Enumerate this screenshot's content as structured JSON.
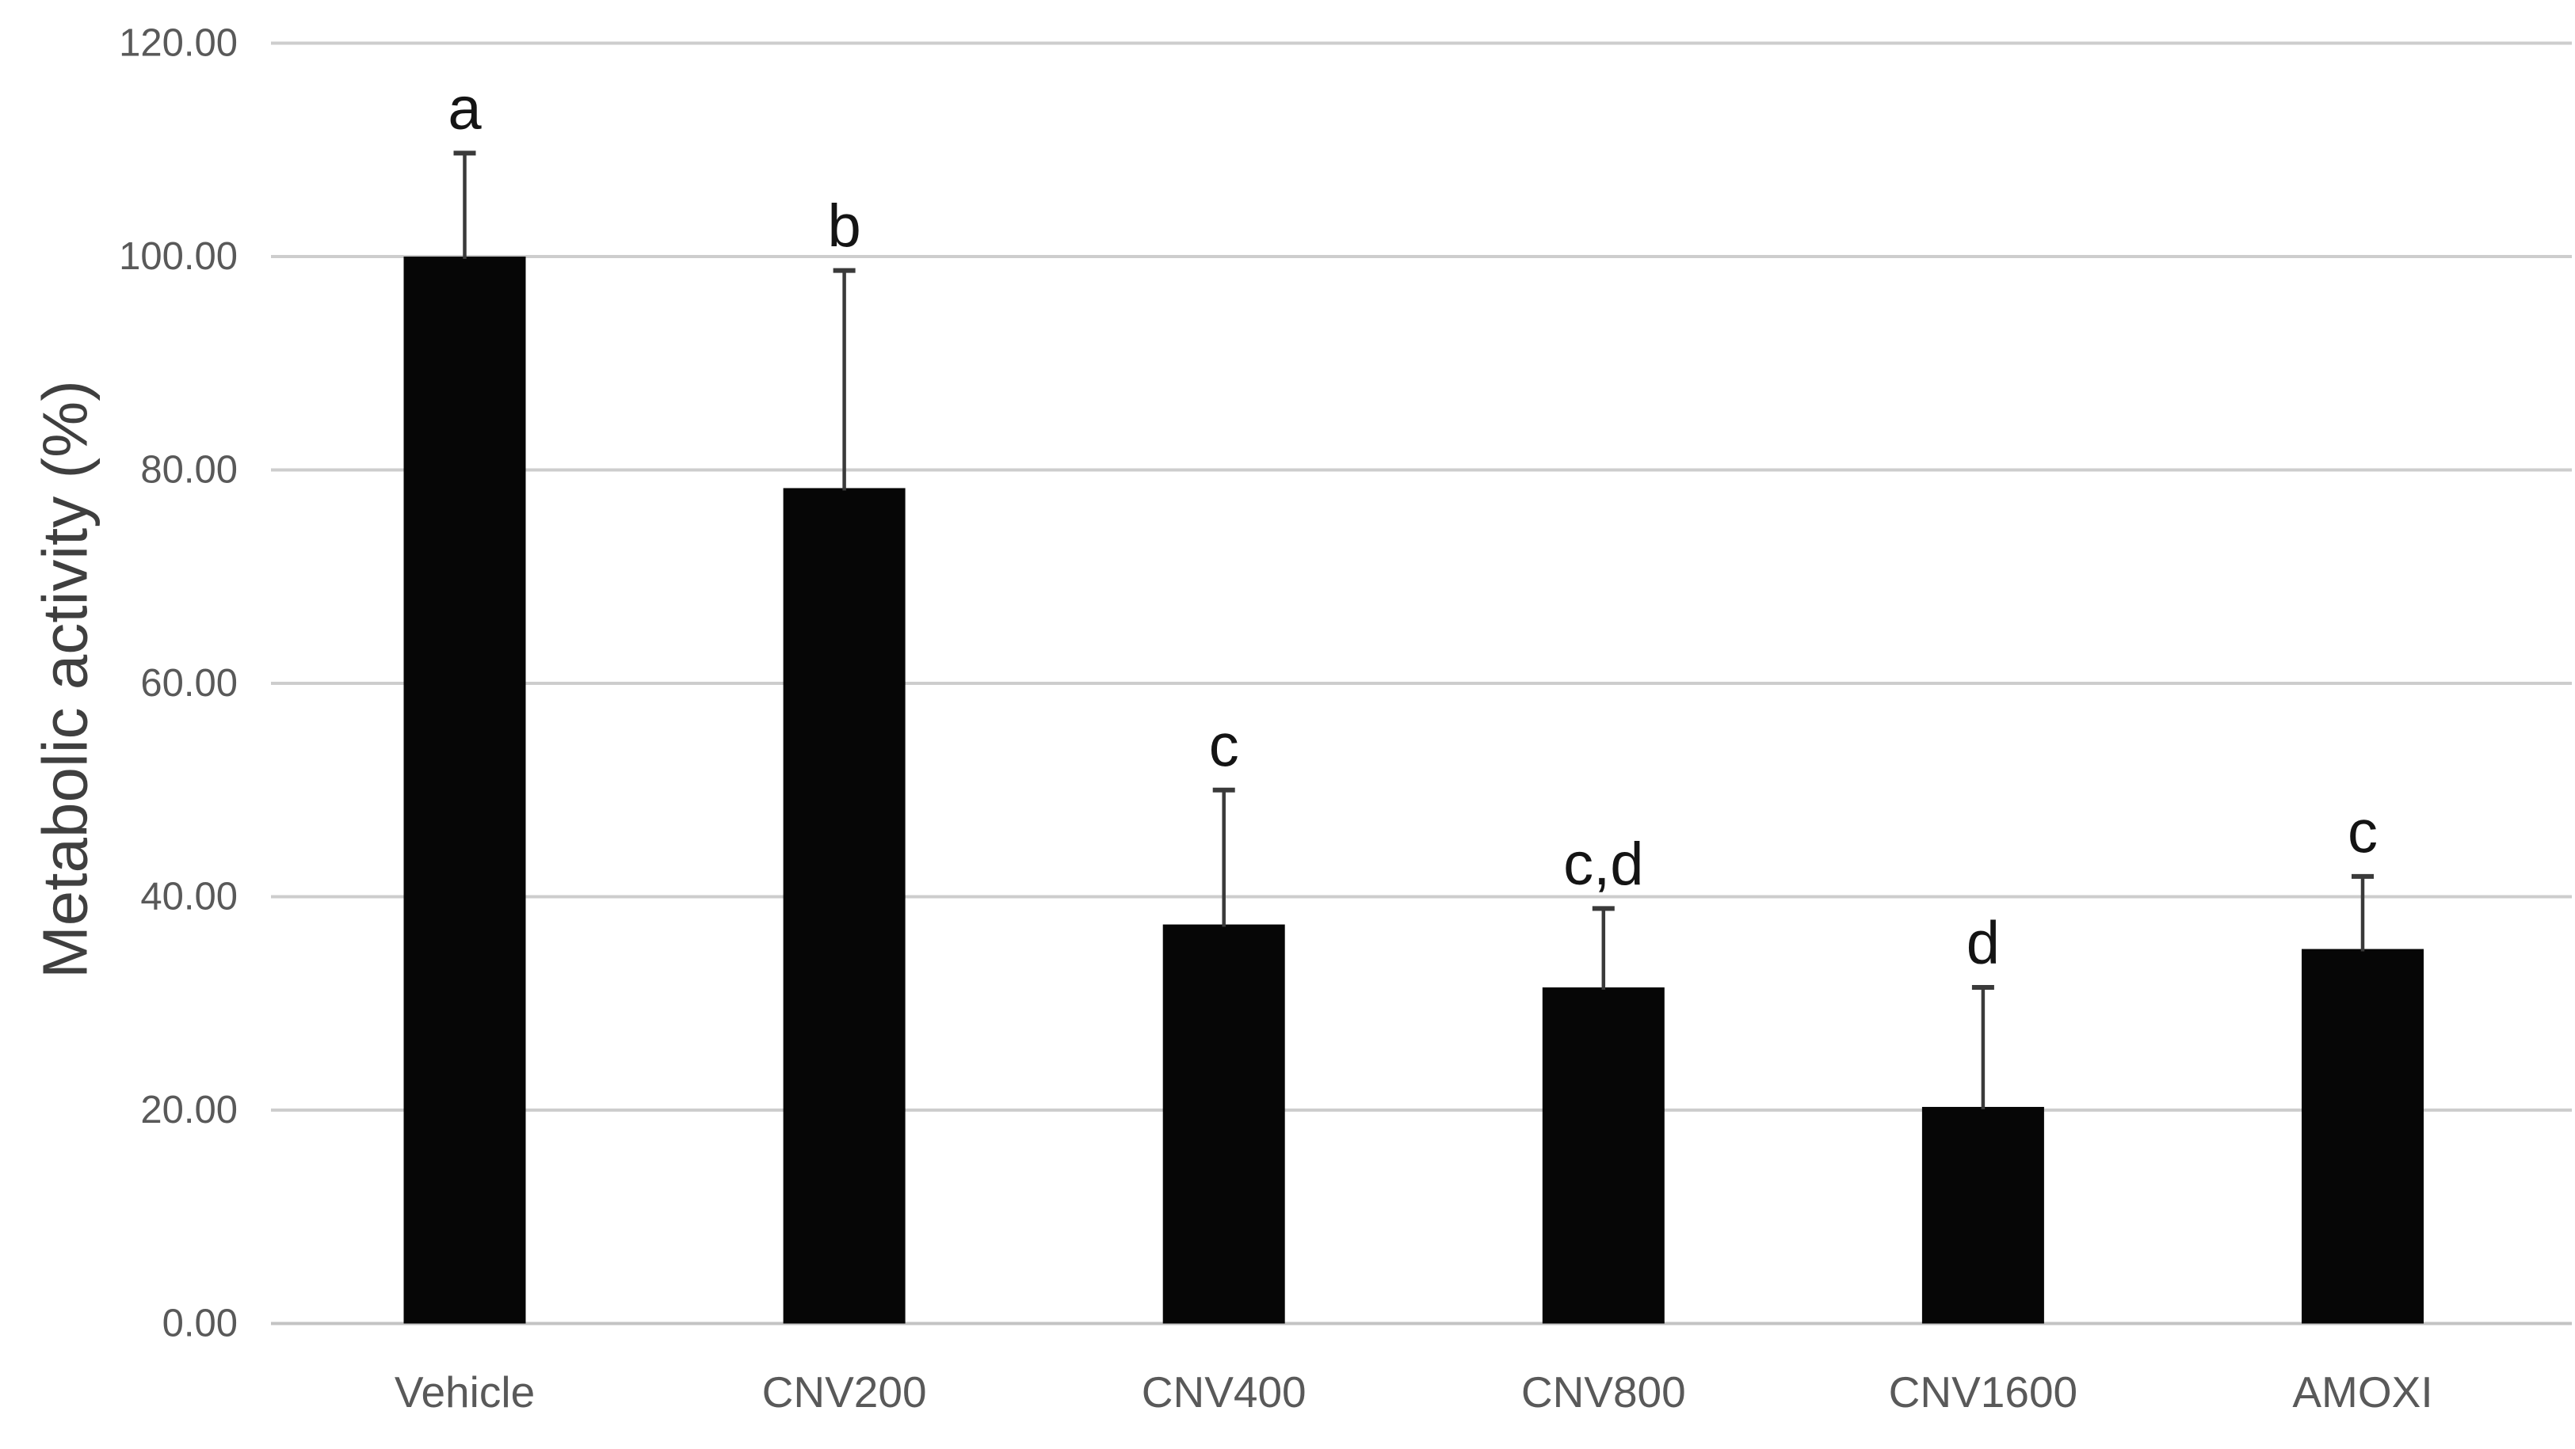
{
  "chart_data": {
    "type": "bar",
    "title": "",
    "xlabel": "",
    "ylabel": "Metabolic activity (%)",
    "categories": [
      "Vehicle",
      "CNV200",
      "CNV400",
      "CNV800",
      "CNV1600",
      "AMOXI"
    ],
    "values": [
      100.0,
      78.3,
      37.4,
      31.5,
      20.3,
      35.1
    ],
    "error_plus": [
      9.7,
      20.4,
      12.6,
      7.4,
      11.2,
      6.8
    ],
    "annotations": [
      "a",
      "b",
      "c",
      "c,d",
      "d",
      "c"
    ],
    "ylim": [
      0,
      120
    ],
    "ytick_step": 20,
    "ytick_labels": [
      "0.00",
      "20.00",
      "40.00",
      "60.00",
      "80.00",
      "100.00",
      "120.00"
    ],
    "grid": "horizontal-only",
    "legend": "none",
    "colors": {
      "background": "#ffffff",
      "bar": "#060606",
      "gridline": "#cdcdcd",
      "baseline": "#c3c3c3",
      "tick_label": "#595959",
      "category_label": "#595959",
      "axis_title": "#3f3f3f",
      "annotation": "#141414",
      "error_bar": "#3a3a3a"
    }
  }
}
